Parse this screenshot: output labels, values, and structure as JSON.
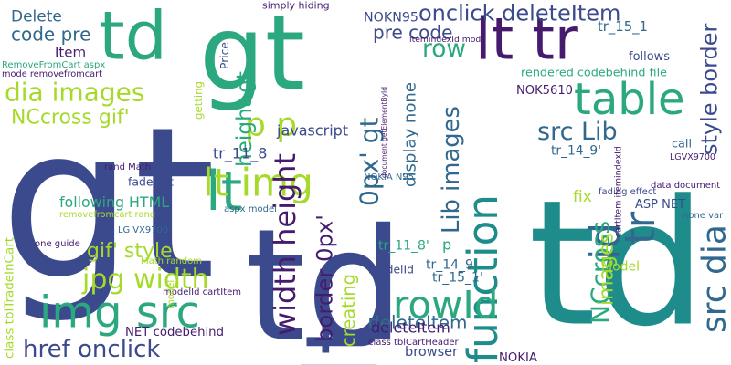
{
  "palette": {
    "navy": "#3b4a8c",
    "purple": "#461b6e",
    "teal": "#1f8c8c",
    "green": "#2ba87f",
    "lime": "#a6da2a",
    "blue": "#31688e"
  },
  "words": [
    {
      "text": "gt",
      "c": "navy"
    },
    {
      "text": "lt",
      "c": "navy"
    },
    {
      "text": "td",
      "c": "green"
    },
    {
      "text": "gt",
      "c": "green"
    },
    {
      "text": "lt tr",
      "c": "purple"
    },
    {
      "text": "lt",
      "c": "green"
    },
    {
      "text": "td",
      "c": "teal"
    },
    {
      "text": "td",
      "c": "navy"
    },
    {
      "text": "img src",
      "c": "green"
    },
    {
      "text": "table",
      "c": "green"
    },
    {
      "text": "src dia",
      "c": "blue"
    },
    {
      "text": "function",
      "c": "teal"
    },
    {
      "text": "tr",
      "c": "blue"
    },
    {
      "text": "id",
      "c": "blue"
    },
    {
      "text": "rowId",
      "c": "green"
    },
    {
      "text": "lt img",
      "c": "lime"
    },
    {
      "text": "p p",
      "c": "lime"
    },
    {
      "text": "row",
      "c": "green"
    },
    {
      "text": "onclick deleteItem",
      "c": "navy"
    },
    {
      "text": "dia images",
      "c": "lime"
    },
    {
      "text": "jpg width",
      "c": "lime"
    },
    {
      "text": "href onclick",
      "c": "navy"
    },
    {
      "text": "width height",
      "c": "purple"
    },
    {
      "text": "height gt",
      "c": "green"
    },
    {
      "text": "Lib images",
      "c": "blue"
    },
    {
      "text": "src Lib",
      "c": "blue"
    },
    {
      "text": "NCcross",
      "c": "green"
    },
    {
      "text": "style border",
      "c": "navy"
    },
    {
      "text": "NCcross gif'",
      "c": "lime"
    },
    {
      "text": "gif' style",
      "c": "lime"
    },
    {
      "text": "border 0px'",
      "c": "purple"
    },
    {
      "text": "0px' gt",
      "c": "blue"
    },
    {
      "text": "images",
      "c": "lime"
    },
    {
      "text": "display none",
      "c": "blue"
    },
    {
      "text": "deleteItem",
      "c": "blue"
    },
    {
      "text": "pre code",
      "c": "navy"
    },
    {
      "text": "Delete",
      "c": "blue"
    },
    {
      "text": "code pre",
      "c": "blue"
    },
    {
      "text": "Item",
      "c": "purple"
    },
    {
      "text": "NOKN95",
      "c": "navy"
    },
    {
      "text": "simply hiding",
      "c": "purple"
    },
    {
      "text": "itemindexId mode",
      "c": "purple"
    },
    {
      "text": "tr_15_1",
      "c": "blue"
    },
    {
      "text": "follows",
      "c": "navy"
    },
    {
      "text": "rendered codebehind file",
      "c": "green"
    },
    {
      "text": "NOK5610",
      "c": "purple"
    },
    {
      "text": "javascript",
      "c": "navy"
    },
    {
      "text": "tr_14_9'",
      "c": "blue"
    },
    {
      "text": "call",
      "c": "blue"
    },
    {
      "text": "LGVX9700",
      "c": "purple"
    },
    {
      "text": "tr_11_8",
      "c": "navy"
    },
    {
      "text": "ASP NET",
      "c": "navy"
    },
    {
      "text": "fix",
      "c": "lime"
    },
    {
      "text": "data document",
      "c": "purple"
    },
    {
      "text": "fading effect",
      "c": "navy"
    },
    {
      "text": "none var",
      "c": "blue"
    },
    {
      "text": "tr_11_8'",
      "c": "green"
    },
    {
      "text": "p",
      "c": "green"
    },
    {
      "text": "tr_14_9",
      "c": "blue"
    },
    {
      "text": "tr_15_1'",
      "c": "blue"
    },
    {
      "text": "modelId",
      "c": "navy"
    },
    {
      "text": "deleteItem",
      "c": "purple"
    },
    {
      "text": "browser",
      "c": "navy"
    },
    {
      "text": "NOKIA",
      "c": "purple"
    },
    {
      "text": "class tblCartHeader",
      "c": "purple"
    },
    {
      "text": "creating",
      "c": "lime"
    },
    {
      "text": "Model",
      "c": "lime"
    },
    {
      "text": "NET codebehind",
      "c": "purple"
    },
    {
      "text": "modelId cartItem",
      "c": "purple"
    },
    {
      "text": "Math random",
      "c": "lime"
    },
    {
      "text": "one guide",
      "c": "purple"
    },
    {
      "text": "LG VX9700",
      "c": "blue"
    },
    {
      "text": "removefromcart rand",
      "c": "lime"
    },
    {
      "text": "following HTML",
      "c": "green"
    },
    {
      "text": "fadeOut",
      "c": "navy"
    },
    {
      "text": "rand Math",
      "c": "purple"
    },
    {
      "text": "getting",
      "c": "lime"
    },
    {
      "text": "RemoveFromCart aspx",
      "c": "green"
    },
    {
      "text": "mode removefromcart",
      "c": "purple"
    },
    {
      "text": "NOKIA N95",
      "c": "blue"
    },
    {
      "text": "aspx model",
      "c": "blue"
    },
    {
      "text": "Price",
      "c": "navy"
    },
    {
      "text": "class tblTradeInCart",
      "c": "lime"
    },
    {
      "text": "document getElementById",
      "c": "purple"
    },
    {
      "text": "cartItem itemindexId",
      "c": "purple"
    },
    {
      "text": "model",
      "c": "lime"
    }
  ]
}
